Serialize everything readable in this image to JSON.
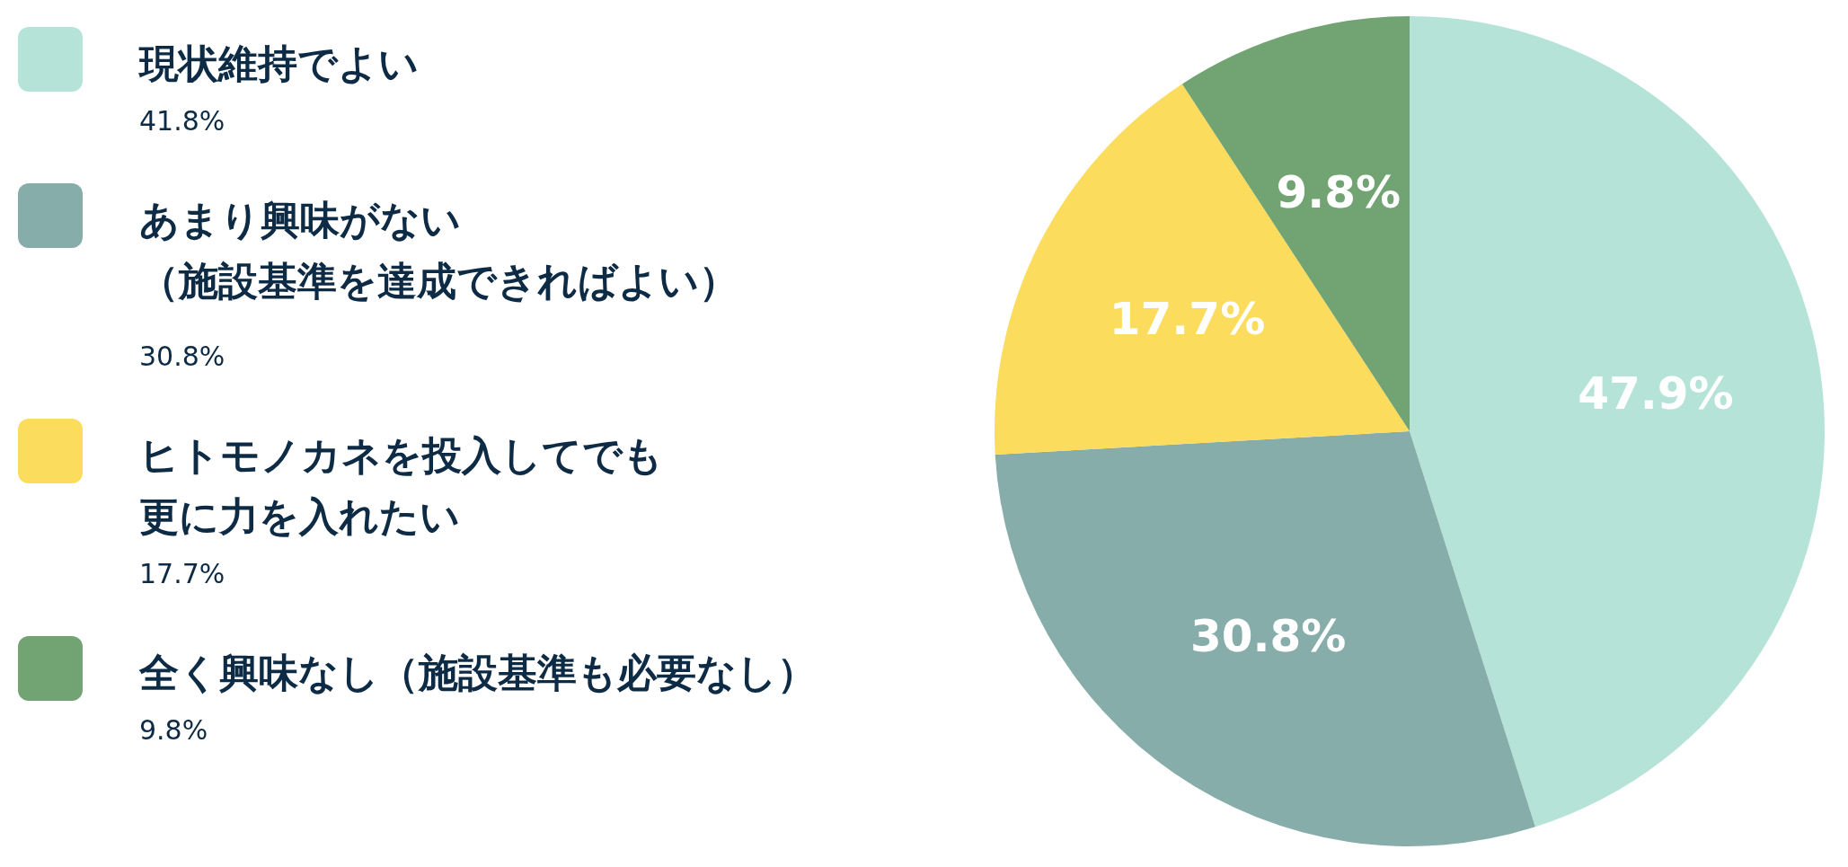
{
  "chart_data": {
    "type": "pie",
    "categories": [
      "現状維持でよい",
      "あまり興味がない（施設基準を達成できればよい）",
      "ヒトモノカネを投入してでも更に力を入れたい",
      "全く興味なし（施設基準も必要なし）"
    ],
    "values": [
      47.9,
      30.8,
      17.7,
      9.8
    ],
    "value_labels": [
      "47.9%",
      "30.8%",
      "17.7%",
      "9.8%"
    ],
    "colors": [
      "#b6e3d8",
      "#87adab",
      "#fcdc5c",
      "#71a373"
    ],
    "annotations": [
      "41.8%",
      "30.8%",
      "17.7%",
      "9.8%"
    ],
    "legend": "left"
  }
}
